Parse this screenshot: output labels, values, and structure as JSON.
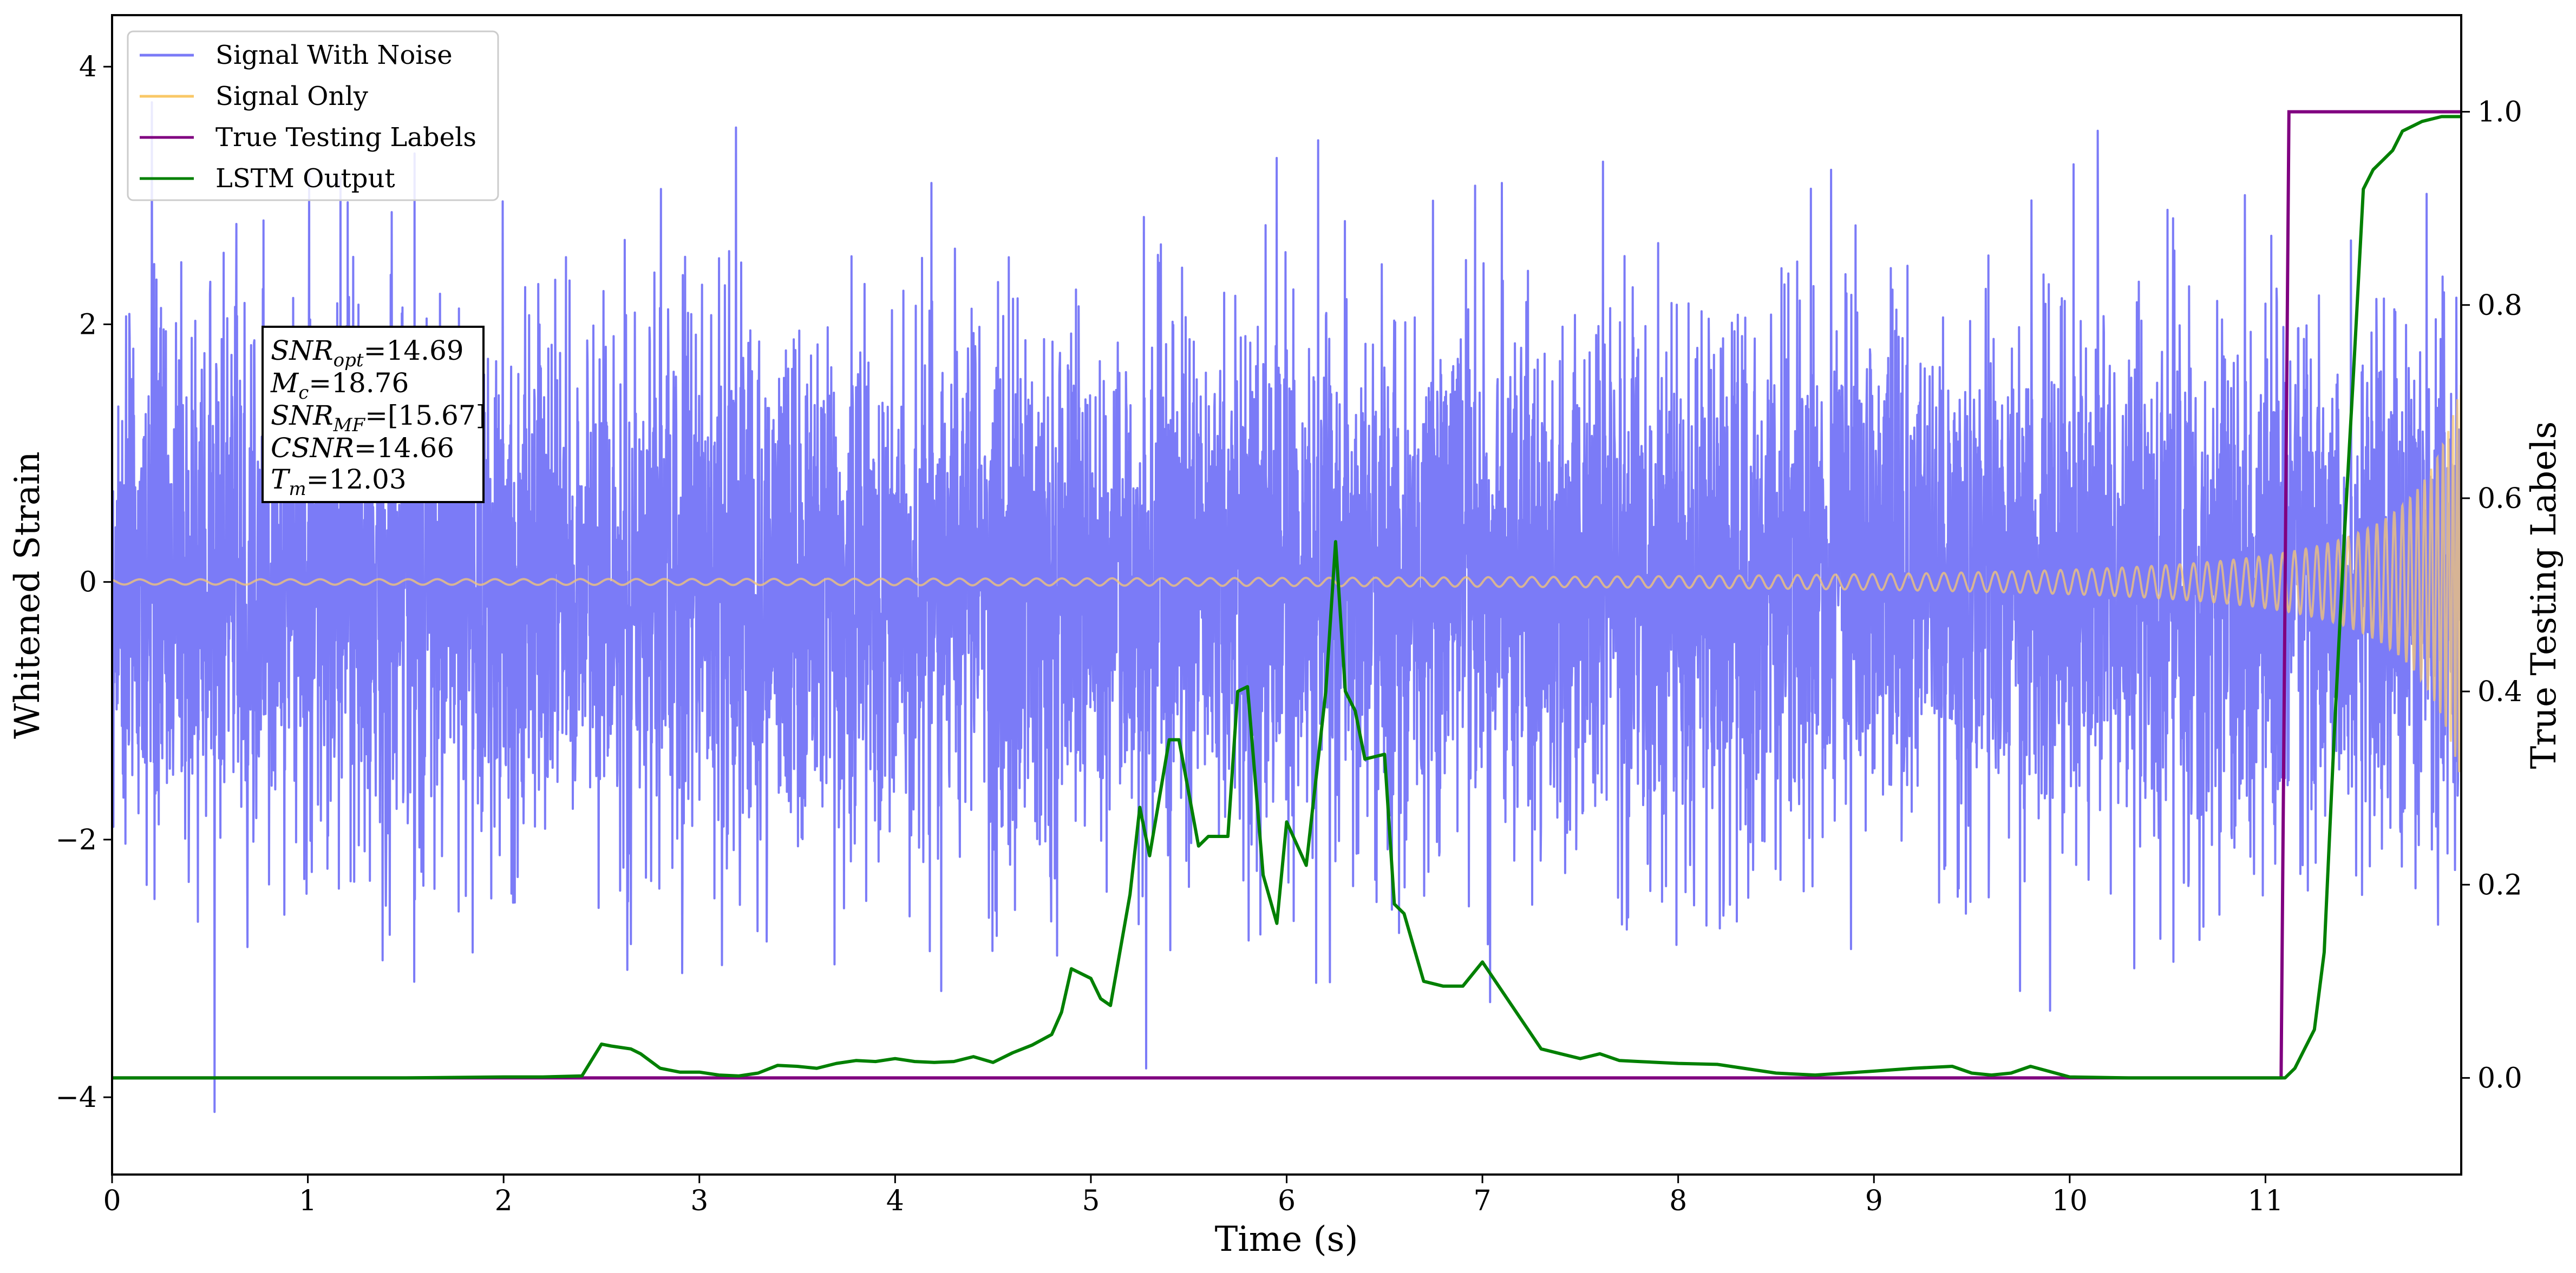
{
  "chart_data": {
    "type": "line",
    "title": "",
    "xlabel": "Time (s)",
    "ylabel": "Whitened Strain",
    "ylabel_right": "True Testing Labels",
    "xlim": [
      0,
      12.0
    ],
    "ylim": [
      -4.6,
      4.4
    ],
    "ylim_right": [
      -0.1,
      1.1
    ],
    "x_ticks": [
      0,
      1,
      2,
      3,
      4,
      5,
      6,
      7,
      8,
      9,
      10,
      11
    ],
    "y_ticks": [
      4,
      2,
      0,
      -2,
      -4
    ],
    "y_tick_labels": [
      "4",
      "2",
      "0",
      "−2",
      "−4"
    ],
    "y_right_ticks": [
      0.0,
      0.2,
      0.4,
      0.6,
      0.8,
      1.0
    ],
    "y_right_tick_labels": [
      "0.0",
      "0.2",
      "0.4",
      "0.6",
      "0.8",
      "1.0"
    ],
    "grid": false,
    "legend_position": "top-left",
    "legend": [
      {
        "name": "Signal With Noise",
        "color": "#7b7bf7"
      },
      {
        "name": "Signal Only",
        "color": "#f9c867"
      },
      {
        "name": "True Testing Labels",
        "color": "#800080"
      },
      {
        "name": "LSTM Output",
        "color": "#008000"
      }
    ],
    "info_box": {
      "SNR_opt": {
        "base": "SNR",
        "sub": "opt",
        "value": "=14.69"
      },
      "M_c": {
        "base": "M",
        "sub": "c",
        "value": "=18.76"
      },
      "SNR_MF": {
        "base": "SNR",
        "sub": "MF",
        "value": "=[15.67]"
      },
      "CSNR": {
        "base": "CSNR",
        "sub": "",
        "value": "=14.66"
      },
      "T_m": {
        "base": "T",
        "sub": "m",
        "value": "=12.03"
      }
    },
    "series": [
      {
        "name": "Signal With Noise",
        "axis": "left",
        "description_type": "noise",
        "std": 1.0,
        "min": -4.2,
        "max": 4.0,
        "x_range": [
          0,
          12.0
        ]
      },
      {
        "name": "Signal Only",
        "axis": "left",
        "description_type": "chirp",
        "amplitude_start": 0.02,
        "amplitude_end": 1.55,
        "merger_time": 12.03,
        "x_range": [
          0,
          12.0
        ]
      },
      {
        "name": "True Testing Labels",
        "axis": "right",
        "x": [
          0,
          11.08,
          11.12,
          12.0
        ],
        "y": [
          0.0,
          0.0,
          1.0,
          1.0
        ]
      },
      {
        "name": "LSTM Output",
        "axis": "right",
        "x": [
          0,
          0.5,
          1.0,
          1.5,
          2.0,
          2.2,
          2.4,
          2.5,
          2.55,
          2.65,
          2.7,
          2.8,
          2.9,
          3.0,
          3.1,
          3.2,
          3.3,
          3.4,
          3.5,
          3.6,
          3.7,
          3.8,
          3.9,
          4.0,
          4.1,
          4.2,
          4.3,
          4.4,
          4.5,
          4.6,
          4.7,
          4.8,
          4.85,
          4.9,
          5.0,
          5.05,
          5.1,
          5.2,
          5.25,
          5.3,
          5.4,
          5.45,
          5.55,
          5.6,
          5.7,
          5.75,
          5.8,
          5.88,
          5.95,
          6.0,
          6.1,
          6.2,
          6.25,
          6.3,
          6.35,
          6.4,
          6.5,
          6.55,
          6.6,
          6.7,
          6.8,
          6.9,
          7.0,
          7.1,
          7.2,
          7.3,
          7.4,
          7.5,
          7.6,
          7.7,
          7.8,
          8.0,
          8.2,
          8.5,
          8.7,
          9.0,
          9.2,
          9.4,
          9.5,
          9.6,
          9.7,
          9.8,
          10.0,
          10.3,
          10.6,
          10.9,
          11.1,
          11.15,
          11.2,
          11.25,
          11.3,
          11.35,
          11.4,
          11.45,
          11.5,
          11.55,
          11.6,
          11.65,
          11.7,
          11.8,
          11.9,
          12.0
        ],
        "y": [
          0.0,
          0.0,
          0.0,
          0.0,
          0.001,
          0.001,
          0.002,
          0.035,
          0.033,
          0.03,
          0.025,
          0.01,
          0.006,
          0.006,
          0.003,
          0.002,
          0.005,
          0.013,
          0.012,
          0.01,
          0.015,
          0.018,
          0.017,
          0.02,
          0.017,
          0.016,
          0.017,
          0.022,
          0.016,
          0.026,
          0.034,
          0.045,
          0.068,
          0.113,
          0.103,
          0.082,
          0.075,
          0.19,
          0.28,
          0.23,
          0.35,
          0.35,
          0.24,
          0.25,
          0.25,
          0.4,
          0.405,
          0.21,
          0.16,
          0.265,
          0.22,
          0.4,
          0.555,
          0.4,
          0.38,
          0.33,
          0.335,
          0.18,
          0.17,
          0.1,
          0.095,
          0.095,
          0.12,
          0.09,
          0.06,
          0.03,
          0.025,
          0.02,
          0.025,
          0.018,
          0.017,
          0.015,
          0.014,
          0.005,
          0.003,
          0.007,
          0.01,
          0.012,
          0.005,
          0.003,
          0.005,
          0.012,
          0.001,
          0.0,
          0.0,
          0.0,
          0.0,
          0.01,
          0.03,
          0.05,
          0.13,
          0.35,
          0.55,
          0.73,
          0.92,
          0.94,
          0.95,
          0.96,
          0.98,
          0.99,
          0.995,
          0.995
        ]
      }
    ]
  }
}
